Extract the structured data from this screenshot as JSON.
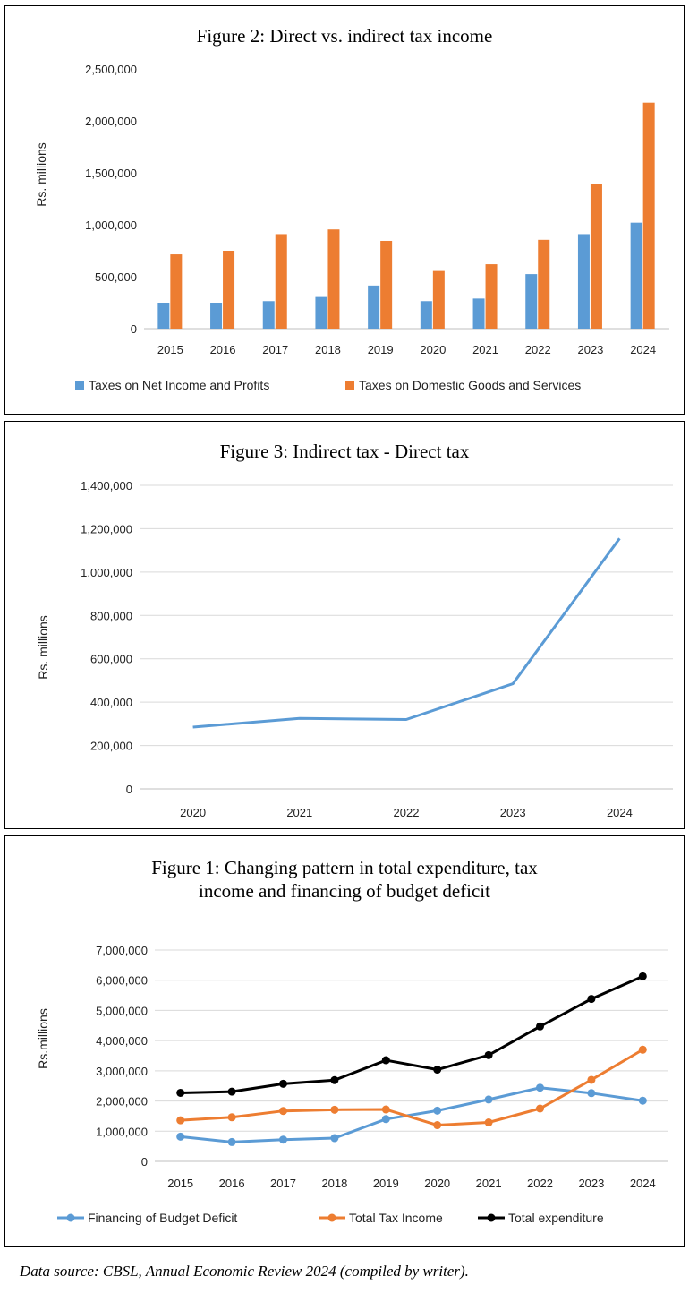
{
  "chart_data": [
    {
      "id": "fig2",
      "type": "bar",
      "title": "Figure  2: Direct  vs.  indirect  tax  income",
      "ylabel": "Rs. millions",
      "ylim": [
        0,
        2500000
      ],
      "yticks": [
        0,
        500000,
        1000000,
        1500000,
        2000000,
        2500000
      ],
      "ytick_labels": [
        "0",
        "500,000",
        "1,000,000",
        "1,500,000",
        "2,000,000",
        "2,500,000"
      ],
      "categories": [
        "2015",
        "2016",
        "2017",
        "2018",
        "2019",
        "2020",
        "2021",
        "2022",
        "2023",
        "2024"
      ],
      "series": [
        {
          "name": "Taxes on Net Income and Profits",
          "color": "#5B9BD5",
          "values": [
            250000,
            250000,
            265000,
            305000,
            415000,
            265000,
            290000,
            525000,
            910000,
            1020000
          ]
        },
        {
          "name": "Taxes on Domestic Goods and Services",
          "color": "#ED7D31",
          "values": [
            715000,
            750000,
            910000,
            955000,
            845000,
            555000,
            620000,
            855000,
            1395000,
            2175000
          ]
        }
      ],
      "grid": false,
      "legend": "bottom"
    },
    {
      "id": "fig3",
      "type": "line",
      "title": "Figure  3: Indirect  tax  - Direct  tax",
      "ylabel": "Rs. millions",
      "ylim": [
        0,
        1400000
      ],
      "yticks": [
        0,
        200000,
        400000,
        600000,
        800000,
        1000000,
        1200000,
        1400000
      ],
      "ytick_labels": [
        "0",
        "200,000",
        "400,000",
        "600,000",
        "800,000",
        "1,000,000",
        "1,200,000",
        "1,400,000"
      ],
      "categories": [
        "2020",
        "2021",
        "2022",
        "2023",
        "2024"
      ],
      "series": [
        {
          "color": "#5B9BD5",
          "values": [
            285000,
            325000,
            320000,
            485000,
            1155000
          ]
        }
      ],
      "grid": true
    },
    {
      "id": "fig1",
      "type": "line",
      "title": "Figure  1: Changing  pattern  in  total  expenditure,  tax income  and financing  of  budget  deficit",
      "title_lines": [
        "Figure  1: Changing  pattern  in  total  expenditure,  tax",
        "income  and financing  of  budget  deficit"
      ],
      "ylabel": "Rs.millions",
      "ylim": [
        0,
        7000000
      ],
      "yticks": [
        0,
        1000000,
        2000000,
        3000000,
        4000000,
        5000000,
        6000000,
        7000000
      ],
      "ytick_labels": [
        "0",
        "1,000,000",
        "2,000,000",
        "3,000,000",
        "4,000,000",
        "5,000,000",
        "6,000,000",
        "7,000,000"
      ],
      "categories": [
        "2015",
        "2016",
        "2017",
        "2018",
        "2019",
        "2020",
        "2021",
        "2022",
        "2023",
        "2024"
      ],
      "series": [
        {
          "name": "Financing of Budget Deficit",
          "color": "#5B9BD5",
          "values": [
            820000,
            640000,
            720000,
            770000,
            1400000,
            1680000,
            2050000,
            2440000,
            2260000,
            2010000
          ]
        },
        {
          "name": "Total Tax Income",
          "color": "#ED7D31",
          "values": [
            1360000,
            1460000,
            1670000,
            1710000,
            1720000,
            1200000,
            1290000,
            1750000,
            2700000,
            3700000
          ]
        },
        {
          "name": "Total expenditure",
          "color": "#000000",
          "values": [
            2270000,
            2310000,
            2570000,
            2690000,
            3350000,
            3040000,
            3520000,
            4470000,
            5380000,
            6130000
          ]
        }
      ],
      "grid": true,
      "legend": "bottom"
    }
  ],
  "source_note": "Data source: CBSL, Annual Economic Review 2024 (compiled by writer)."
}
